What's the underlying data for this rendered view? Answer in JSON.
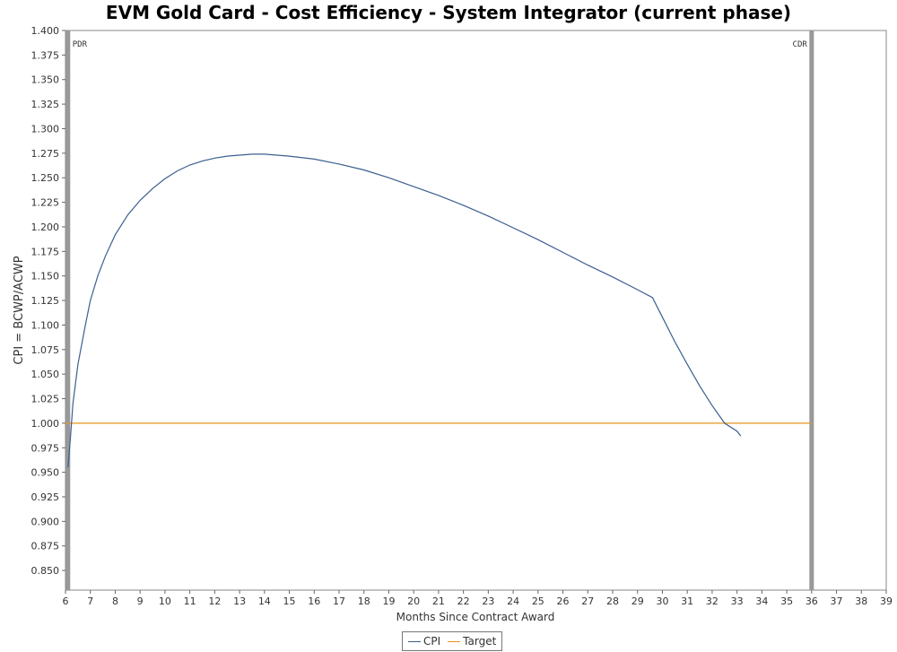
{
  "chart_data": {
    "type": "line",
    "title": "EVM Gold Card - Cost Efficiency - System Integrator (current phase)",
    "xlabel": "Months Since Contract Award",
    "ylabel": "CPI = BCWP/ACWP",
    "xlim": [
      6,
      39
    ],
    "ylim": [
      0.83,
      1.4
    ],
    "x_ticks": [
      6,
      7,
      8,
      9,
      10,
      11,
      12,
      13,
      14,
      15,
      16,
      17,
      18,
      19,
      20,
      21,
      22,
      23,
      24,
      25,
      26,
      27,
      28,
      29,
      30,
      31,
      32,
      33,
      34,
      35,
      36,
      37,
      38,
      39
    ],
    "y_ticks": [
      0.85,
      0.875,
      0.9,
      0.925,
      0.95,
      0.975,
      1.0,
      1.025,
      1.05,
      1.075,
      1.1,
      1.125,
      1.15,
      1.175,
      1.2,
      1.225,
      1.25,
      1.275,
      1.3,
      1.325,
      1.35,
      1.375,
      1.4
    ],
    "grid": false,
    "legend": "bottom-center",
    "milestones": [
      {
        "label": "PDR",
        "x": 6.1
      },
      {
        "label": "CDR",
        "x": 36.0
      }
    ],
    "series": [
      {
        "name": "CPI",
        "color": "#3a5f8f",
        "x": [
          6.1,
          6.2,
          6.3,
          6.5,
          6.8,
          7.0,
          7.3,
          7.6,
          8.0,
          8.5,
          9.0,
          9.5,
          10.0,
          10.5,
          11.0,
          11.5,
          12.0,
          12.5,
          13.0,
          13.5,
          14.0,
          15.0,
          16.0,
          17.0,
          18.0,
          19.0,
          20.0,
          21.0,
          22.0,
          23.0,
          24.0,
          25.0,
          26.0,
          27.0,
          28.0,
          29.0,
          29.6,
          30.0,
          30.5,
          31.0,
          31.5,
          32.0,
          32.5,
          33.0,
          33.15
        ],
        "values": [
          0.955,
          0.985,
          1.02,
          1.06,
          1.1,
          1.125,
          1.15,
          1.17,
          1.192,
          1.212,
          1.227,
          1.239,
          1.249,
          1.257,
          1.263,
          1.267,
          1.27,
          1.272,
          1.273,
          1.274,
          1.274,
          1.272,
          1.269,
          1.264,
          1.258,
          1.25,
          1.241,
          1.232,
          1.222,
          1.211,
          1.199,
          1.187,
          1.174,
          1.161,
          1.149,
          1.136,
          1.128,
          1.108,
          1.083,
          1.06,
          1.038,
          1.018,
          1.0,
          0.992,
          0.987
        ]
      },
      {
        "name": "Target",
        "color": "#e6961e",
        "x": [
          6,
          36
        ],
        "values": [
          1.0,
          1.0
        ]
      }
    ]
  }
}
